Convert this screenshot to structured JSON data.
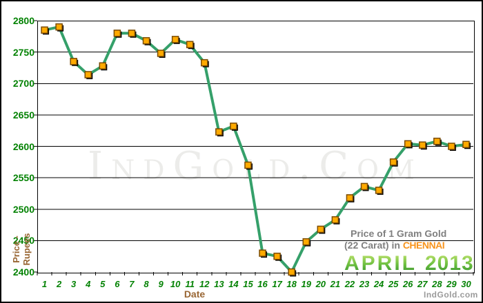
{
  "watermark": {
    "text": "IndGold.Com",
    "color": "#ececea"
  },
  "site_credit": {
    "text": "IndGold.com",
    "color": "#9a9a9a"
  },
  "title_block": {
    "line1": "Price of 1 Gram Gold",
    "line2_prefix": "(22 Carat) in ",
    "city": "CHENNAI",
    "month": "APRIL",
    "year": "2013",
    "text_color": "#7f7f7f",
    "city_color": "#f7941d",
    "month_color": "#3f9b3f"
  },
  "axes": {
    "x_title": "Date",
    "y_title_line1": "Price -",
    "y_title_line2": "Rupees",
    "axis_title_color": "#996633",
    "tick_label_color": "#038203"
  },
  "chart_data": {
    "type": "line",
    "title": "Price of 1 Gram Gold (22 Carat) in CHENNAI - APRIL 2013",
    "xlabel": "Date",
    "ylabel": "Price - Rupees",
    "x": [
      1,
      2,
      3,
      4,
      5,
      6,
      7,
      8,
      9,
      10,
      11,
      12,
      13,
      14,
      15,
      16,
      17,
      18,
      19,
      20,
      21,
      22,
      23,
      24,
      25,
      26,
      27,
      28,
      29,
      30
    ],
    "values": [
      2785,
      2790,
      2735,
      2714,
      2728,
      2780,
      2780,
      2768,
      2748,
      2770,
      2762,
      2733,
      2623,
      2632,
      2570,
      2430,
      2425,
      2400,
      2448,
      2468,
      2483,
      2518,
      2536,
      2530,
      2575,
      2604,
      2602,
      2608,
      2600,
      2603
    ],
    "ylim": [
      2400,
      2800
    ],
    "y_ticks": [
      2400,
      2450,
      2500,
      2550,
      2600,
      2650,
      2700,
      2750,
      2800
    ],
    "grid": "horizontal",
    "legend": "none",
    "line_color": "#35a06a",
    "marker": "square",
    "marker_color": "#ffaa00",
    "marker_border_color": "#7a4b00",
    "marker_shadow_color": "#000000",
    "grid_color": "#000000"
  }
}
